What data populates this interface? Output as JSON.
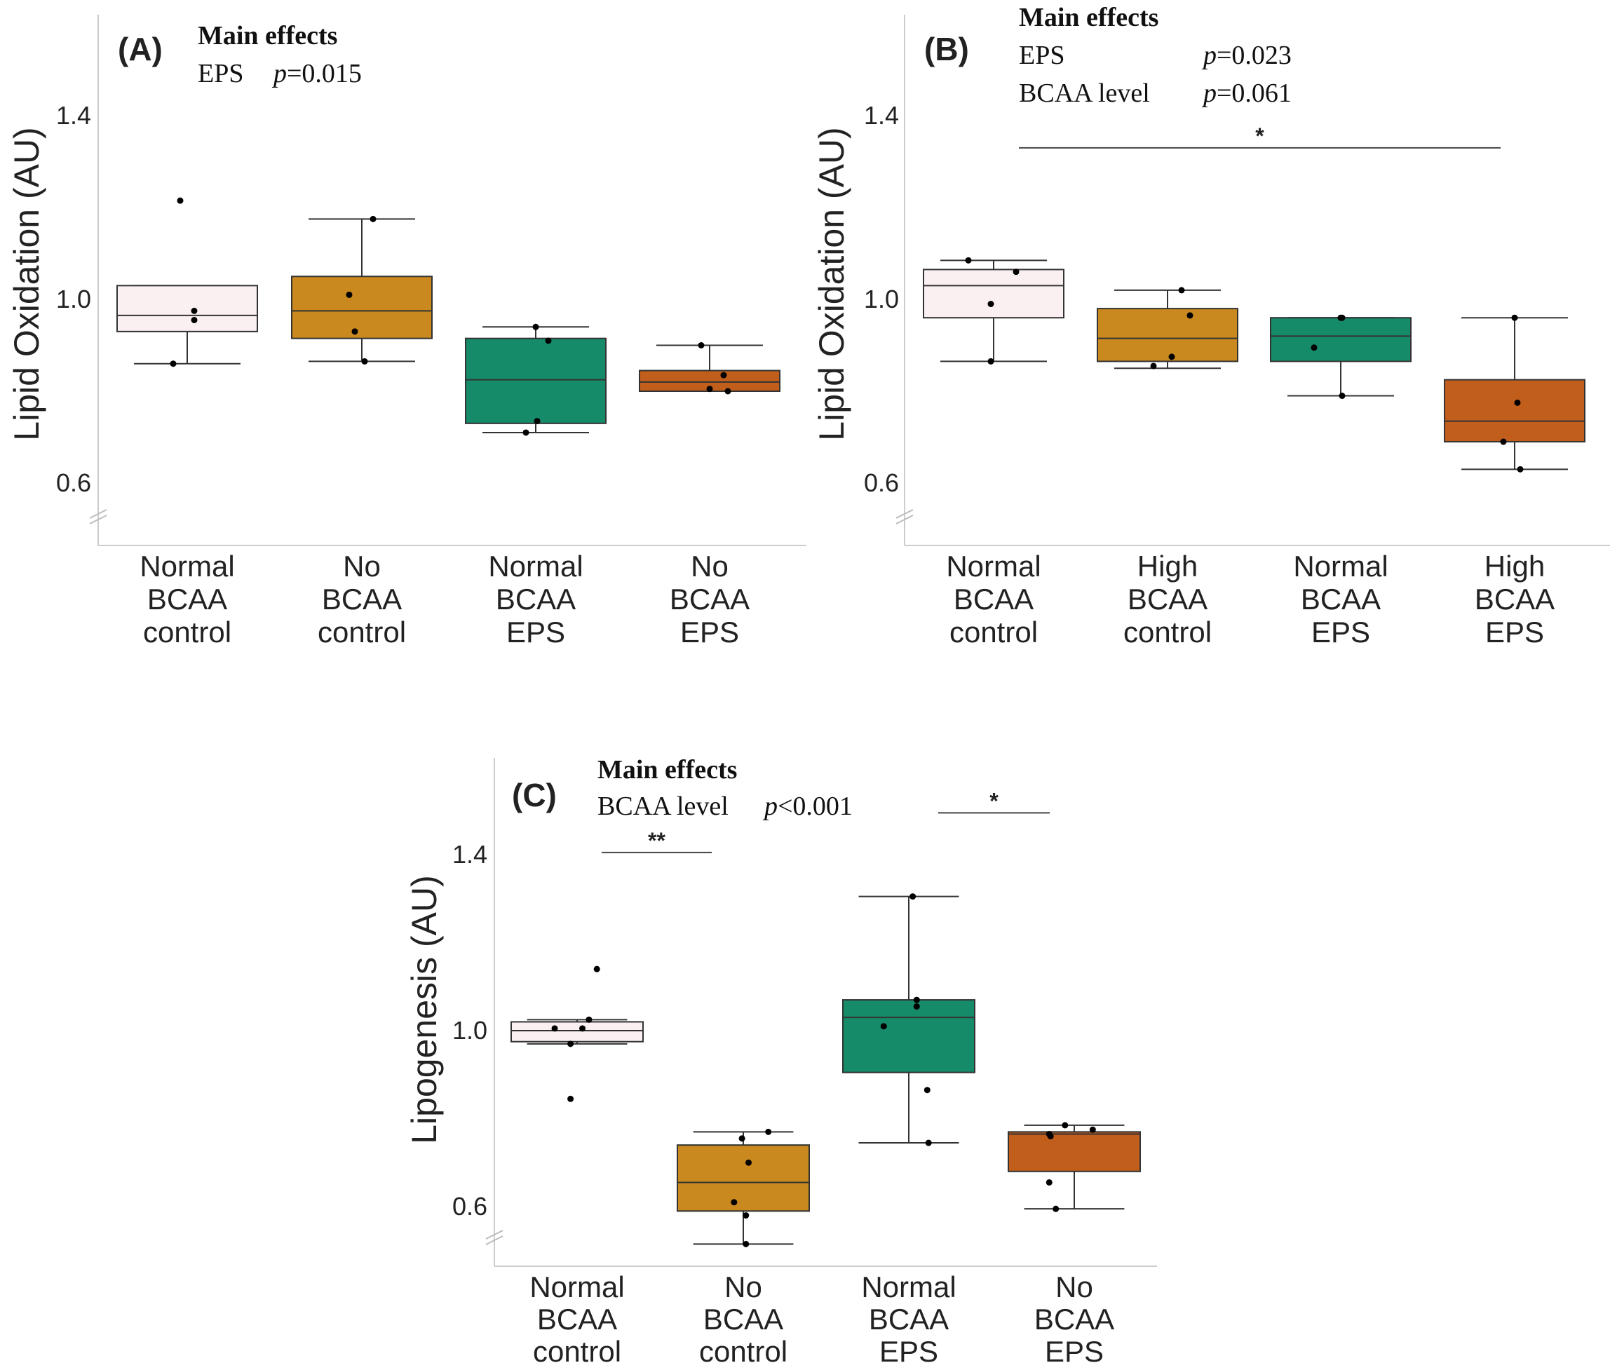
{
  "colors": {
    "normal_control": "#fbf0f1",
    "alt_control": "#c9891e",
    "normal_eps": "#168b6a",
    "alt_eps": "#c15e1c",
    "edge": "#333333",
    "axis": "#cccccc"
  },
  "chart_data": [
    {
      "type": "box",
      "panel_label": "(A)",
      "ylabel": "Lipid Oxidation (AU)",
      "yticks": [
        "0.6",
        "1.0",
        "1.4"
      ],
      "ylim": [
        0.47,
        1.62
      ],
      "axis_break": true,
      "annotation": {
        "title": "Main effects",
        "rows": [
          {
            "term": "EPS",
            "p_symbol": "p",
            "p_value": "=0.015"
          }
        ]
      },
      "brackets": [],
      "categories": [
        {
          "lines": [
            "Normal",
            "BCAA",
            "control"
          ],
          "color": "normal_control",
          "box": {
            "whisker_low": 0.86,
            "q1": 0.93,
            "median": 0.965,
            "q3": 1.03,
            "whisker_high": 1.03
          },
          "points": [
            [
              -0.05,
              1.215
            ],
            [
              0.05,
              0.975
            ],
            [
              0.05,
              0.955
            ],
            [
              -0.1,
              0.86
            ]
          ]
        },
        {
          "lines": [
            "No",
            "BCAA",
            "control"
          ],
          "color": "alt_control",
          "box": {
            "whisker_low": 0.865,
            "q1": 0.915,
            "median": 0.975,
            "q3": 1.05,
            "whisker_high": 1.175
          },
          "points": [
            [
              0.08,
              1.175
            ],
            [
              -0.09,
              1.01
            ],
            [
              -0.05,
              0.93
            ],
            [
              0.02,
              0.865
            ]
          ]
        },
        {
          "lines": [
            "Normal",
            "BCAA",
            "EPS"
          ],
          "color": "normal_eps",
          "box": {
            "whisker_low": 0.71,
            "q1": 0.73,
            "median": 0.825,
            "q3": 0.915,
            "whisker_high": 0.94
          },
          "points": [
            [
              0.0,
              0.94
            ],
            [
              0.09,
              0.91
            ],
            [
              0.01,
              0.735
            ],
            [
              -0.07,
              0.71
            ]
          ]
        },
        {
          "lines": [
            "No",
            "BCAA",
            "EPS"
          ],
          "color": "alt_eps",
          "box": {
            "whisker_low": 0.8,
            "q1": 0.8,
            "median": 0.82,
            "q3": 0.845,
            "whisker_high": 0.9
          },
          "points": [
            [
              -0.06,
              0.9
            ],
            [
              0.1,
              0.835
            ],
            [
              0.0,
              0.805
            ],
            [
              0.13,
              0.8
            ]
          ]
        }
      ]
    },
    {
      "type": "box",
      "panel_label": "(B)",
      "ylabel": "Lipid Oxidation (AU)",
      "yticks": [
        "0.6",
        "1.0",
        "1.4"
      ],
      "ylim": [
        0.47,
        1.62
      ],
      "axis_break": true,
      "annotation": {
        "title": "Main effects",
        "rows": [
          {
            "term": "EPS",
            "p_symbol": "p",
            "p_value": "=0.023"
          },
          {
            "term": "BCAA level",
            "p_symbol": "p",
            "p_value": "=0.061"
          }
        ]
      },
      "brackets": [
        {
          "from": 0,
          "to": 3,
          "y": 1.33,
          "label": "*"
        }
      ],
      "categories": [
        {
          "lines": [
            "Normal",
            "BCAA",
            "control"
          ],
          "color": "normal_control",
          "box": {
            "whisker_low": 0.865,
            "q1": 0.96,
            "median": 1.03,
            "q3": 1.065,
            "whisker_high": 1.085
          },
          "points": [
            [
              -0.18,
              1.085
            ],
            [
              0.16,
              1.06
            ],
            [
              -0.02,
              0.99
            ],
            [
              -0.02,
              0.865
            ]
          ]
        },
        {
          "lines": [
            "High",
            "BCAA",
            "control"
          ],
          "color": "alt_control",
          "box": {
            "whisker_low": 0.85,
            "q1": 0.865,
            "median": 0.915,
            "q3": 0.98,
            "whisker_high": 1.02
          },
          "points": [
            [
              0.1,
              1.02
            ],
            [
              0.16,
              0.965
            ],
            [
              0.03,
              0.875
            ],
            [
              -0.1,
              0.855
            ]
          ]
        },
        {
          "lines": [
            "Normal",
            "BCAA",
            "EPS"
          ],
          "color": "normal_eps",
          "box": {
            "whisker_low": 0.79,
            "q1": 0.865,
            "median": 0.92,
            "q3": 0.96,
            "whisker_high": 0.96
          },
          "points": [
            [
              0.0,
              0.96
            ],
            [
              0.01,
              0.96
            ],
            [
              -0.19,
              0.895
            ],
            [
              0.01,
              0.79
            ]
          ]
        },
        {
          "lines": [
            "High",
            "BCAA",
            "EPS"
          ],
          "color": "alt_eps",
          "box": {
            "whisker_low": 0.63,
            "q1": 0.69,
            "median": 0.735,
            "q3": 0.825,
            "whisker_high": 0.96
          },
          "points": [
            [
              0.0,
              0.96
            ],
            [
              0.02,
              0.775
            ],
            [
              -0.08,
              0.69
            ],
            [
              0.04,
              0.63
            ]
          ]
        }
      ]
    },
    {
      "type": "box",
      "panel_label": "(C)",
      "ylabel": "Lipogenesis (AU)",
      "yticks": [
        "0.6",
        "1.0",
        "1.4"
      ],
      "ylim": [
        0.45,
        1.62
      ],
      "axis_break": true,
      "annotation": {
        "title": "Main effects",
        "rows": [
          {
            "term": "BCAA level",
            "p_symbol": "p",
            "p_value": "<0.001"
          }
        ]
      },
      "brackets": [
        {
          "from": 0.5,
          "to": 1.5,
          "y": 1.405,
          "label": "**",
          "relative_center": 0.5
        },
        {
          "from": 2.5,
          "to": 3.5,
          "y": 1.495,
          "label": "*",
          "relative_center": 2.5
        }
      ],
      "categories": [
        {
          "lines": [
            "Normal",
            "BCAA",
            "control"
          ],
          "color": "normal_control",
          "box": {
            "whisker_low": 0.97,
            "q1": 0.975,
            "median": 1.0,
            "q3": 1.02,
            "whisker_high": 1.025
          },
          "points": [
            [
              0.15,
              1.14
            ],
            [
              0.09,
              1.025
            ],
            [
              -0.17,
              1.005
            ],
            [
              0.04,
              1.005
            ],
            [
              -0.05,
              0.97
            ],
            [
              -0.05,
              0.845
            ]
          ]
        },
        {
          "lines": [
            "No",
            "BCAA",
            "control"
          ],
          "color": "alt_control",
          "box": {
            "whisker_low": 0.515,
            "q1": 0.59,
            "median": 0.655,
            "q3": 0.74,
            "whisker_high": 0.77
          },
          "points": [
            [
              0.19,
              0.77
            ],
            [
              -0.01,
              0.755
            ],
            [
              0.04,
              0.7
            ],
            [
              -0.07,
              0.61
            ],
            [
              0.02,
              0.58
            ],
            [
              0.02,
              0.515
            ]
          ]
        },
        {
          "lines": [
            "Normal",
            "BCAA",
            "EPS"
          ],
          "color": "normal_eps",
          "box": {
            "whisker_low": 0.745,
            "q1": 0.905,
            "median": 1.03,
            "q3": 1.07,
            "whisker_high": 1.305
          },
          "points": [
            [
              0.03,
              1.305
            ],
            [
              0.06,
              1.07
            ],
            [
              0.06,
              1.055
            ],
            [
              -0.19,
              1.01
            ],
            [
              0.14,
              0.865
            ],
            [
              0.15,
              0.745
            ]
          ]
        },
        {
          "lines": [
            "No",
            "BCAA",
            "EPS"
          ],
          "color": "alt_eps",
          "box": {
            "whisker_low": 0.595,
            "q1": 0.68,
            "median": 0.765,
            "q3": 0.77,
            "whisker_high": 0.785
          },
          "points": [
            [
              -0.07,
              0.785
            ],
            [
              0.14,
              0.775
            ],
            [
              -0.19,
              0.765
            ],
            [
              -0.18,
              0.76
            ],
            [
              -0.19,
              0.655
            ],
            [
              -0.14,
              0.595
            ]
          ]
        }
      ]
    }
  ]
}
